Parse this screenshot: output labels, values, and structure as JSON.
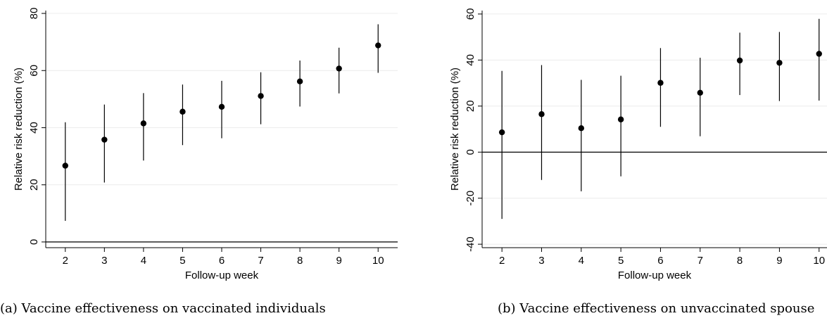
{
  "chart_data": [
    {
      "type": "scatter",
      "caption": "(a) Vaccine effectiveness on vaccinated individuals",
      "xlabel": "Follow-up week",
      "ylabel": "Relative risk reduction  (%)",
      "x": [
        2,
        3,
        4,
        5,
        6,
        7,
        8,
        9,
        10
      ],
      "y": [
        26.7,
        35.8,
        41.5,
        45.6,
        47.3,
        51.1,
        56.2,
        60.7,
        68.8
      ],
      "ci_low": [
        7.4,
        20.8,
        28.5,
        33.9,
        36.3,
        41.2,
        47.4,
        52.0,
        59.2
      ],
      "ci_high": [
        41.9,
        48.1,
        52.1,
        55.1,
        56.4,
        59.4,
        63.5,
        68.0,
        76.2
      ],
      "xlim": [
        1.5,
        10.5
      ],
      "ylim": [
        -2,
        81
      ],
      "xticks": [
        "2",
        "3",
        "4",
        "5",
        "6",
        "7",
        "8",
        "9",
        "10"
      ],
      "yticks": [
        "0",
        "20",
        "40",
        "60",
        "80"
      ],
      "reference_line_y": 0,
      "grid": true
    },
    {
      "type": "scatter",
      "caption": "(b) Vaccine effectiveness on unvaccinated spouse",
      "xlabel": "Follow-up week",
      "ylabel": "Relative risk reduction  (%)",
      "x": [
        2,
        3,
        4,
        5,
        6,
        7,
        8,
        9,
        10
      ],
      "y": [
        8.6,
        16.5,
        10.4,
        14.2,
        30.1,
        25.8,
        39.8,
        38.8,
        42.7
      ],
      "ci_low": [
        -29.0,
        -12.1,
        -17.0,
        -10.5,
        11.0,
        6.9,
        24.8,
        22.2,
        22.4
      ],
      "ci_high": [
        35.3,
        37.8,
        31.4,
        33.2,
        45.2,
        41.0,
        51.9,
        52.2,
        57.9
      ],
      "xlim": [
        1.5,
        10.2
      ],
      "ylim": [
        -41.5,
        61.5
      ],
      "xticks": [
        "2",
        "3",
        "4",
        "5",
        "6",
        "7",
        "8",
        "9",
        "10"
      ],
      "yticks": [
        "-40",
        "-20",
        "0",
        "20",
        "40",
        "60"
      ],
      "reference_line_y": 0,
      "grid": true
    }
  ]
}
